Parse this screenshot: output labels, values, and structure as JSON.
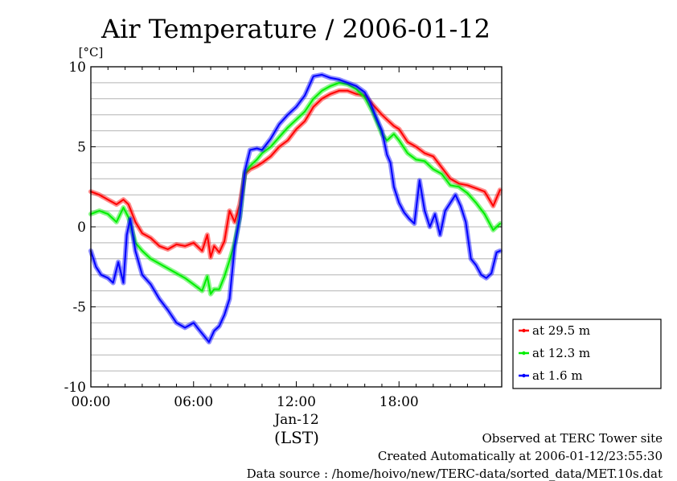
{
  "chart_data": {
    "type": "line",
    "title": "Air Temperature / 2006-01-12",
    "ylabel": "[°C]",
    "xlabel": "(LST)",
    "x_sublabel": "Jan-12",
    "x_unit": "hours",
    "xlim": [
      0,
      24
    ],
    "ylim": [
      -10,
      10
    ],
    "x_ticks": [
      {
        "value": 0,
        "label": "00:00"
      },
      {
        "value": 6,
        "label": "06:00"
      },
      {
        "value": 12,
        "label": "12:00"
      },
      {
        "value": 18,
        "label": "18:00"
      }
    ],
    "y_ticks": [
      {
        "value": 10,
        "label": "10"
      },
      {
        "value": 5,
        "label": "5"
      },
      {
        "value": 0,
        "label": "0"
      },
      {
        "value": -5,
        "label": "-5"
      },
      {
        "value": -10,
        "label": "-10"
      }
    ],
    "grid": true,
    "legend_position": "right",
    "series": [
      {
        "name": "at 29.5 m",
        "color": "#ff0000",
        "x": [
          0,
          0.5,
          1,
          1.5,
          1.9,
          2.2,
          2.6,
          3,
          3.5,
          4,
          4.5,
          5,
          5.5,
          6,
          6.5,
          6.8,
          7,
          7.2,
          7.5,
          7.8,
          8.1,
          8.4,
          8.7,
          9,
          9.3,
          9.7,
          10,
          10.5,
          11,
          11.5,
          12,
          12.5,
          13,
          13.5,
          14,
          14.5,
          15,
          15.5,
          16,
          16.5,
          17,
          17.3,
          17.7,
          18,
          18.5,
          19,
          19.5,
          20,
          20.5,
          21,
          21.5,
          22,
          22.5,
          23,
          23.5,
          23.9
        ],
        "values": [
          2.2,
          2.0,
          1.7,
          1.4,
          1.7,
          1.4,
          0.3,
          -0.4,
          -0.7,
          -1.2,
          -1.4,
          -1.1,
          -1.2,
          -1.0,
          -1.5,
          -0.5,
          -1.9,
          -1.2,
          -1.6,
          -0.9,
          1.0,
          0.3,
          1.4,
          3.3,
          3.6,
          3.8,
          4.0,
          4.4,
          5.0,
          5.4,
          6.1,
          6.6,
          7.5,
          8.0,
          8.3,
          8.5,
          8.5,
          8.3,
          8.2,
          7.6,
          7.0,
          6.7,
          6.3,
          6.1,
          5.3,
          5.0,
          4.6,
          4.4,
          3.7,
          3.0,
          2.7,
          2.6,
          2.4,
          2.2,
          1.3,
          2.3
        ]
      },
      {
        "name": "at 12.3 m",
        "color": "#00ee00",
        "x": [
          0,
          0.5,
          1,
          1.5,
          1.9,
          2.2,
          2.6,
          3,
          3.5,
          4,
          4.5,
          5,
          5.5,
          6,
          6.5,
          6.8,
          7,
          7.2,
          7.5,
          7.8,
          8.1,
          8.4,
          8.7,
          9,
          9.3,
          9.7,
          10,
          10.5,
          11,
          11.5,
          12,
          12.5,
          13,
          13.5,
          14,
          14.5,
          15,
          15.5,
          16,
          16.5,
          17,
          17.3,
          17.7,
          18,
          18.5,
          19,
          19.5,
          20,
          20.5,
          21,
          21.5,
          22,
          22.5,
          23,
          23.5,
          23.9
        ],
        "values": [
          0.8,
          1.0,
          0.8,
          0.3,
          1.2,
          0.6,
          -1.0,
          -1.5,
          -2.0,
          -2.3,
          -2.6,
          -2.9,
          -3.2,
          -3.6,
          -4.0,
          -3.1,
          -4.2,
          -3.9,
          -3.9,
          -3.1,
          -2.1,
          -1.0,
          0.6,
          3.4,
          3.8,
          4.2,
          4.6,
          5.0,
          5.6,
          6.2,
          6.7,
          7.2,
          8.0,
          8.5,
          8.8,
          9.0,
          8.9,
          8.6,
          8.1,
          7.1,
          5.8,
          5.4,
          5.8,
          5.4,
          4.6,
          4.2,
          4.1,
          3.6,
          3.3,
          2.6,
          2.5,
          2.1,
          1.5,
          0.8,
          -0.2,
          0.2
        ]
      },
      {
        "name": "at 1.6 m",
        "color": "#0000ff",
        "x": [
          0,
          0.3,
          0.6,
          1,
          1.3,
          1.6,
          1.9,
          2.1,
          2.3,
          2.6,
          3,
          3.5,
          4,
          4.5,
          5,
          5.5,
          6,
          6.3,
          6.6,
          6.9,
          7.2,
          7.5,
          7.8,
          8.1,
          8.4,
          8.7,
          9,
          9.3,
          9.7,
          10,
          10.5,
          11,
          11.5,
          12,
          12.5,
          13,
          13.5,
          14,
          14.5,
          15,
          15.5,
          16,
          16.3,
          16.6,
          17,
          17.3,
          17.5,
          17.7,
          18,
          18.3,
          18.6,
          18.9,
          19.2,
          19.5,
          19.8,
          20.1,
          20.4,
          20.7,
          21,
          21.3,
          21.6,
          21.9,
          22.2,
          22.5,
          22.8,
          23.1,
          23.4,
          23.7,
          23.9
        ],
        "values": [
          -1.5,
          -2.5,
          -3.0,
          -3.2,
          -3.5,
          -2.2,
          -3.5,
          -0.5,
          0.5,
          -1.5,
          -3.0,
          -3.6,
          -4.5,
          -5.2,
          -6.0,
          -6.3,
          -6.0,
          -6.4,
          -6.8,
          -7.2,
          -6.5,
          -6.2,
          -5.5,
          -4.5,
          -1.2,
          0.6,
          3.5,
          4.8,
          4.9,
          4.8,
          5.5,
          6.4,
          7.0,
          7.5,
          8.2,
          9.4,
          9.5,
          9.3,
          9.2,
          9.0,
          8.8,
          8.4,
          7.8,
          7.0,
          6.0,
          4.5,
          4.0,
          2.5,
          1.5,
          0.9,
          0.5,
          0.2,
          2.9,
          1.0,
          0.0,
          0.8,
          -0.5,
          1.0,
          1.5,
          2.0,
          1.3,
          0.3,
          -2.0,
          -2.4,
          -3.0,
          -3.2,
          -2.9,
          -1.6,
          -1.5
        ]
      }
    ],
    "annotations": [
      "Observed at TERC Tower site",
      "Created Automatically at 2006-01-12/23:55:30",
      "Data source : /home/hoivo/new/TERC-data/sorted_data/MET.10s.dat"
    ]
  }
}
